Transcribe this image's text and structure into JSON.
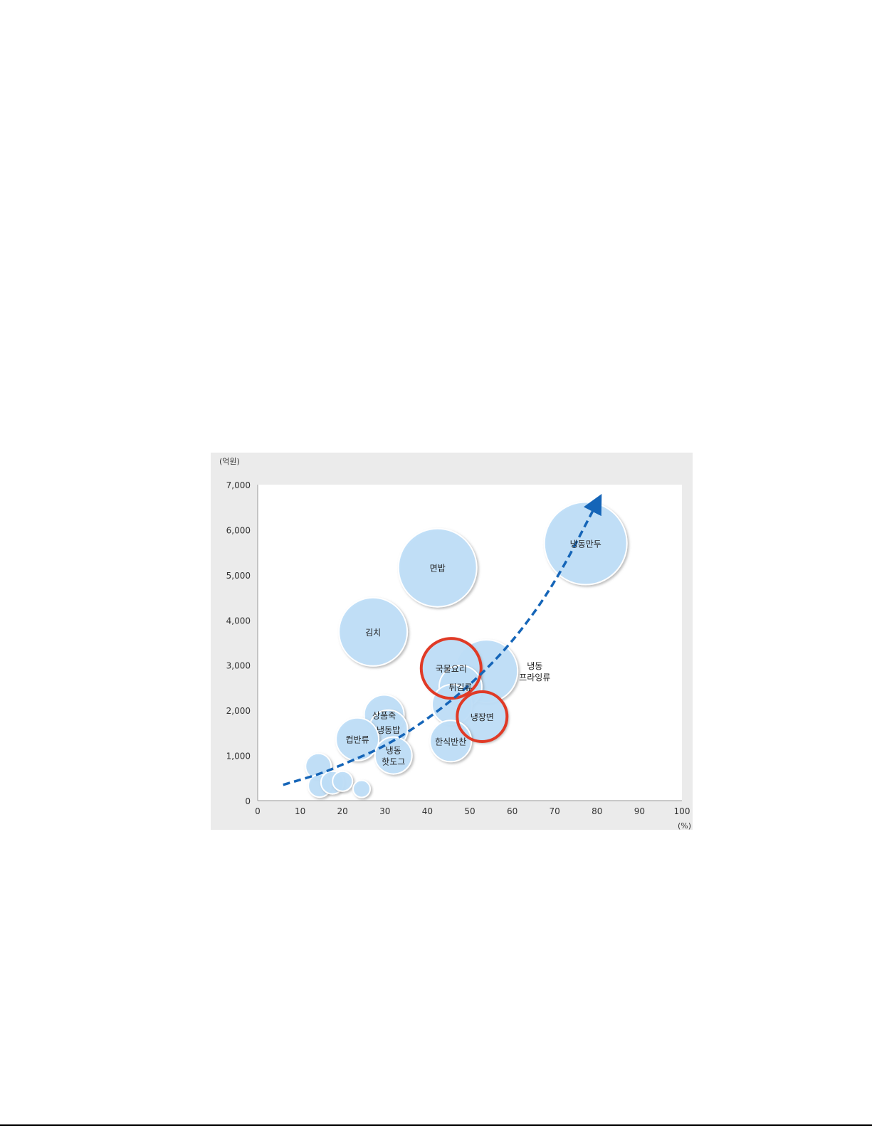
{
  "chart_data": {
    "type": "scatter",
    "subtype": "bubble",
    "y_unit_label": "(억원)",
    "x_unit_label": "(%)",
    "xlim": [
      0,
      100
    ],
    "ylim": [
      0,
      7000
    ],
    "x_ticks": [
      "0",
      "10",
      "20",
      "30",
      "40",
      "50",
      "60",
      "70",
      "80",
      "90",
      "100"
    ],
    "y_ticks": [
      "0",
      "1,000",
      "2,000",
      "3,000",
      "4,000",
      "5,000",
      "6,000",
      "7,000"
    ],
    "grid": false,
    "bubble_color": "#bfe0fa",
    "highlight_color": "#e03a26",
    "trend_color": "#1565b8",
    "bubbles": [
      {
        "label": "냉동만두",
        "x": 77.3,
        "y": 5700,
        "size": 58,
        "highlight": false
      },
      {
        "label": "면밥",
        "x": 42.4,
        "y": 5160,
        "size": 55,
        "highlight": false
      },
      {
        "label": "김치",
        "x": 27.2,
        "y": 3740,
        "size": 48,
        "highlight": false
      },
      {
        "label": "냉동\n프라잉류",
        "x": 53.9,
        "y": 2870,
        "size": 44,
        "highlight": false,
        "label_outside": true
      },
      {
        "label": "국물요리",
        "x": 45.6,
        "y": 2930,
        "size": 42,
        "highlight": true
      },
      {
        "label": "튀김류",
        "x": 47.8,
        "y": 2520,
        "size": 30,
        "highlight": false
      },
      {
        "label": "",
        "x": 45.8,
        "y": 2130,
        "size": 28,
        "highlight": false
      },
      {
        "label": "냉장면",
        "x": 52.9,
        "y": 1860,
        "size": 35,
        "highlight": true
      },
      {
        "label": "한식반찬",
        "x": 45.5,
        "y": 1320,
        "size": 29,
        "highlight": false
      },
      {
        "label": "상품죽",
        "x": 29.8,
        "y": 1900,
        "size": 28,
        "highlight": false
      },
      {
        "label": "냉동밥",
        "x": 30.8,
        "y": 1580,
        "size": 27,
        "highlight": false
      },
      {
        "label": "컵반류",
        "x": 23.5,
        "y": 1360,
        "size": 30,
        "highlight": false
      },
      {
        "label": "냉동\n핫도그",
        "x": 32.0,
        "y": 1000,
        "size": 26,
        "highlight": false
      },
      {
        "label": "",
        "x": 14.3,
        "y": 760,
        "size": 18,
        "highlight": false
      },
      {
        "label": "",
        "x": 14.6,
        "y": 330,
        "size": 16,
        "highlight": false
      },
      {
        "label": "",
        "x": 17.6,
        "y": 400,
        "size": 16,
        "highlight": false
      },
      {
        "label": "",
        "x": 20.0,
        "y": 430,
        "size": 14,
        "highlight": false
      },
      {
        "label": "",
        "x": 24.5,
        "y": 260,
        "size": 12,
        "highlight": false
      }
    ],
    "trend_arrow": {
      "style": "dashed",
      "points": [
        [
          6,
          350
        ],
        [
          15,
          600
        ],
        [
          20,
          800
        ],
        [
          30,
          1200
        ],
        [
          40,
          1800
        ],
        [
          50,
          2550
        ],
        [
          60,
          3500
        ],
        [
          70,
          4800
        ],
        [
          80,
          6600
        ]
      ]
    }
  }
}
